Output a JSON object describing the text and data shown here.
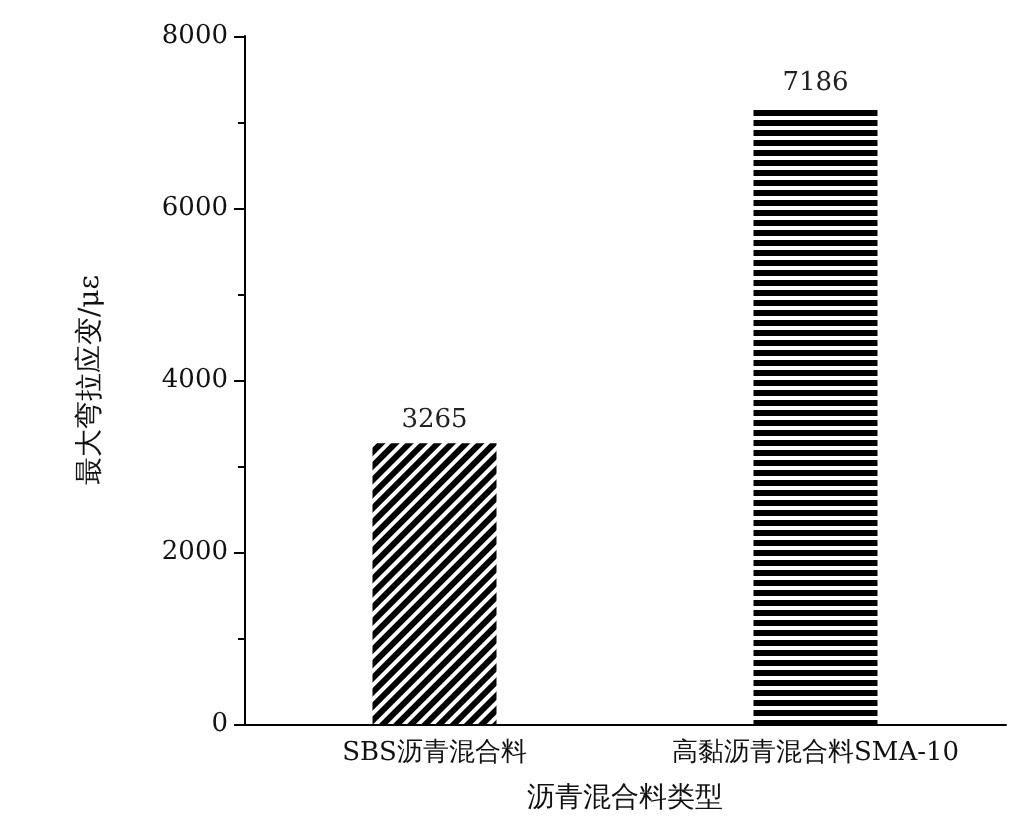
{
  "chart_data": {
    "type": "bar",
    "xlabel": "沥青混合料类型",
    "ylabel": "最大弯拉应变/με",
    "categories": [
      "SBS沥青混合料",
      "高黏沥青混合料SMA-10"
    ],
    "values": [
      3265,
      7186
    ],
    "colors": [
      "#000000",
      "#000000"
    ],
    "ylim": [
      0,
      8000
    ],
    "yticks": [
      0,
      2000,
      4000,
      6000,
      8000
    ],
    "data_labels": true,
    "grid": false
  }
}
